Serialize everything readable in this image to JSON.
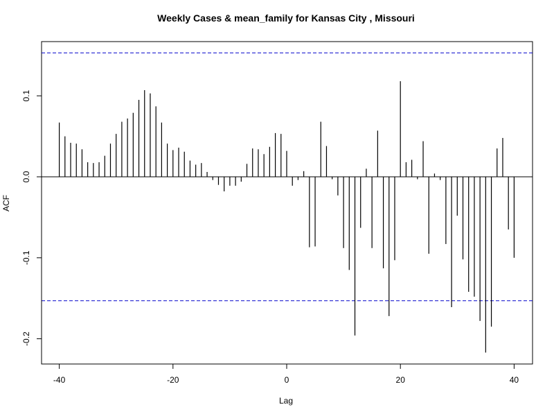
{
  "chart_data": {
    "type": "bar",
    "title": "Weekly Cases & mean_family for Kansas City , Missouri",
    "xlabel": "Lag",
    "ylabel": "ACF",
    "xlim": [
      -40,
      40
    ],
    "ylim": [
      -0.2,
      0.15
    ],
    "xticks": [
      -40,
      -20,
      0,
      20,
      40
    ],
    "xtick_labels": [
      "-40",
      "-20",
      "0",
      "20",
      "40"
    ],
    "yticks": [
      -0.2,
      -0.1,
      0.0,
      0.1
    ],
    "ytick_labels": [
      "-0.2",
      "-0.1",
      "0.0",
      "0.1"
    ],
    "confidence_bound": 0.153,
    "confidence_line_color": "#0000cc",
    "bar_color": "#000000",
    "lags": [
      -40,
      -39,
      -38,
      -37,
      -36,
      -35,
      -34,
      -33,
      -32,
      -31,
      -30,
      -29,
      -28,
      -27,
      -26,
      -25,
      -24,
      -23,
      -22,
      -21,
      -20,
      -19,
      -18,
      -17,
      -16,
      -15,
      -14,
      -13,
      -12,
      -11,
      -10,
      -9,
      -8,
      -7,
      -6,
      -5,
      -4,
      -3,
      -2,
      -1,
      0,
      1,
      2,
      3,
      4,
      5,
      6,
      7,
      8,
      9,
      10,
      11,
      12,
      13,
      14,
      15,
      16,
      17,
      18,
      19,
      20,
      21,
      22,
      23,
      24,
      25,
      26,
      27,
      28,
      29,
      30,
      31,
      32,
      33,
      34,
      35,
      36,
      37,
      38,
      39,
      40
    ],
    "values": [
      0.067,
      0.05,
      0.042,
      0.041,
      0.034,
      0.018,
      0.017,
      0.018,
      0.026,
      0.041,
      0.053,
      0.068,
      0.072,
      0.079,
      0.095,
      0.107,
      0.103,
      0.087,
      0.067,
      0.041,
      0.033,
      0.036,
      0.031,
      0.02,
      0.015,
      0.017,
      0.006,
      -0.004,
      -0.01,
      -0.018,
      -0.011,
      -0.011,
      -0.006,
      0.016,
      0.035,
      0.034,
      0.028,
      0.037,
      0.054,
      0.053,
      0.032,
      -0.011,
      -0.004,
      0.007,
      -0.087,
      -0.086,
      0.068,
      0.038,
      -0.003,
      -0.023,
      -0.088,
      -0.115,
      -0.196,
      -0.063,
      0.01,
      -0.088,
      0.057,
      -0.113,
      -0.172,
      -0.103,
      0.118,
      0.018,
      0.021,
      -0.003,
      0.044,
      -0.095,
      0.004,
      -0.004,
      -0.083,
      -0.161,
      -0.048,
      -0.102,
      -0.142,
      -0.148,
      -0.178,
      -0.217,
      -0.185,
      0.035,
      0.048,
      -0.065,
      -0.1
    ]
  }
}
